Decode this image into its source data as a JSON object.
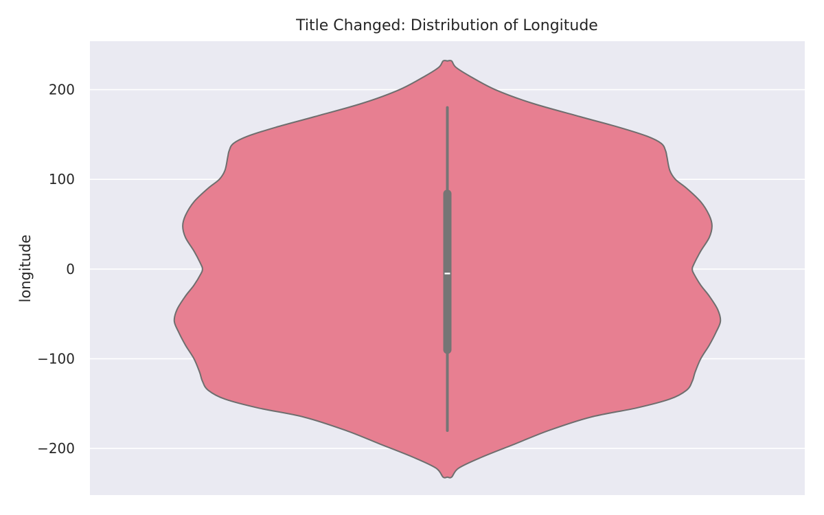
{
  "chart_data": {
    "type": "violin",
    "title": "Title Changed: Distribution of Longitude",
    "xlabel": "",
    "ylabel": "longitude",
    "ylim": [
      -252,
      254
    ],
    "yticks": [
      -200,
      -100,
      0,
      100,
      200
    ],
    "ytick_labels": [
      "−200",
      "−100",
      "0",
      "100",
      "200"
    ],
    "grid": true,
    "background_color": "#eaeaf2",
    "violin_color": "#e77f91",
    "edge_color": "#6e6e6e",
    "box_color": "#757575",
    "median_color": "#ffffff",
    "summary": {
      "min": -180,
      "q1": -90,
      "median": -5,
      "q3": 84,
      "max": 180
    },
    "kde_extent": [
      -232,
      232
    ],
    "density_profile": {
      "y": [
        232,
        225,
        215,
        200,
        185,
        170,
        158,
        148,
        140,
        132,
        125,
        110,
        100,
        90,
        75,
        60,
        48,
        35,
        20,
        5,
        0,
        -5,
        -18,
        -30,
        -45,
        -58,
        -70,
        -85,
        -100,
        -115,
        -125,
        -135,
        -145,
        -155,
        -165,
        -180,
        -195,
        -210,
        -222,
        -232
      ],
      "half_width": [
        0.015,
        0.03,
        0.08,
        0.17,
        0.3,
        0.47,
        0.61,
        0.71,
        0.76,
        0.775,
        0.78,
        0.79,
        0.81,
        0.85,
        0.9,
        0.93,
        0.94,
        0.93,
        0.9,
        0.875,
        0.87,
        0.875,
        0.9,
        0.93,
        0.96,
        0.97,
        0.955,
        0.93,
        0.9,
        0.88,
        0.87,
        0.85,
        0.79,
        0.67,
        0.51,
        0.36,
        0.24,
        0.12,
        0.04,
        0.015
      ]
    }
  }
}
